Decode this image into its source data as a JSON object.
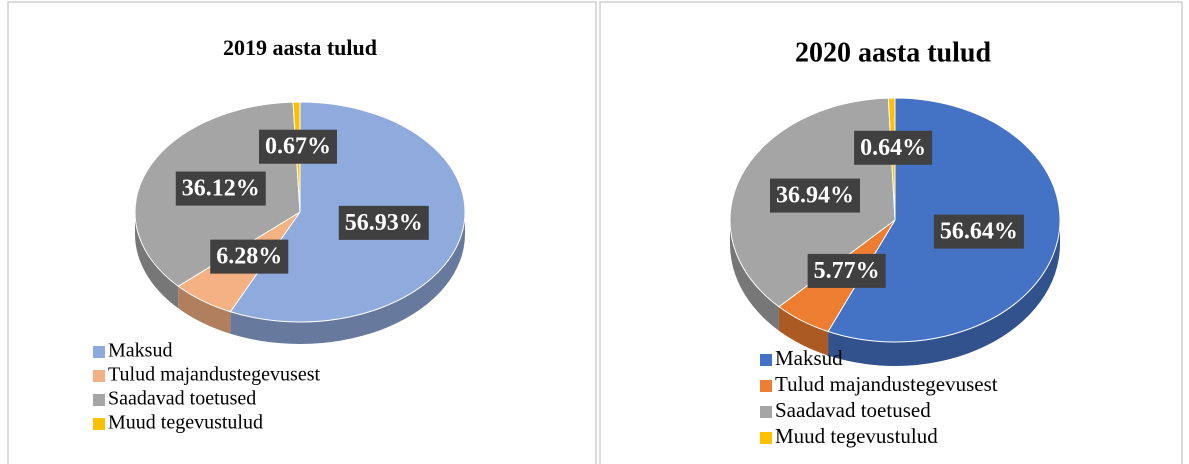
{
  "chart_data": [
    {
      "type": "pie",
      "title": "2019 aasta tulud",
      "categories": [
        "Maksud",
        "Tulud majandustegevusest",
        "Saadavad toetused",
        "Muud tegevustulud"
      ],
      "values": [
        56.93,
        6.28,
        36.12,
        0.67
      ],
      "value_labels": [
        "56.93%",
        "6.28%",
        "36.12%",
        "0.67%"
      ],
      "colors": [
        "#8faadc",
        "#f4b183",
        "#a5a5a5",
        "#ffc000"
      ]
    },
    {
      "type": "pie",
      "title": "2020 aasta tulud",
      "categories": [
        "Maksud",
        "Tulud majandustegevusest",
        "Saadavad toetused",
        "Muud tegevustulud"
      ],
      "values": [
        56.64,
        5.77,
        36.94,
        0.64
      ],
      "value_labels": [
        "56.64%",
        "5.77%",
        "36.94%",
        "0.64%"
      ],
      "colors": [
        "#4472c4",
        "#ed7d31",
        "#a5a5a5",
        "#ffc000"
      ]
    }
  ]
}
